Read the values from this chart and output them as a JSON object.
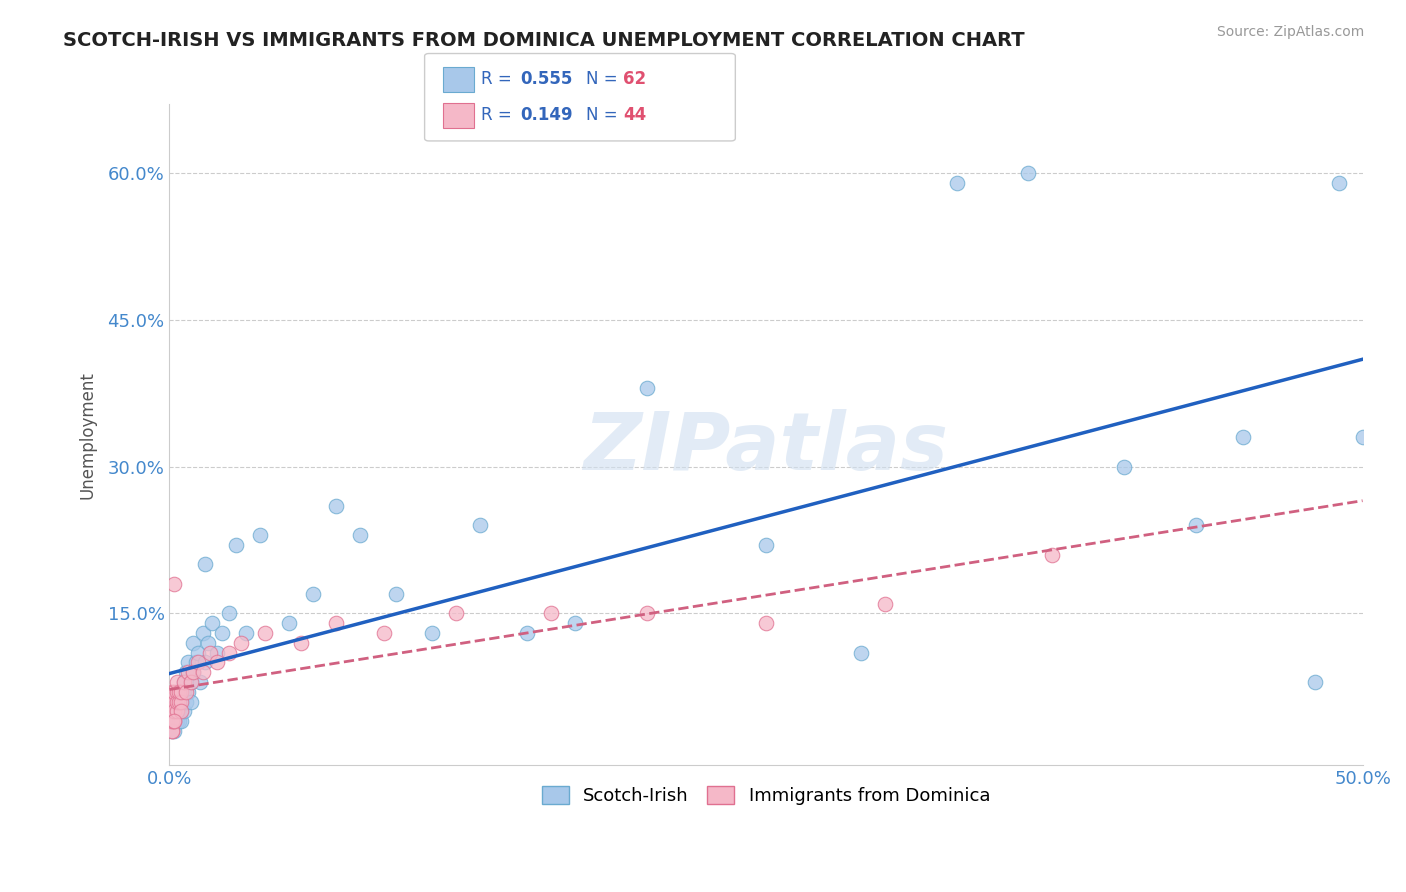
{
  "title": "SCOTCH-IRISH VS IMMIGRANTS FROM DOMINICA UNEMPLOYMENT CORRELATION CHART",
  "source": "Source: ZipAtlas.com",
  "ylabel": "Unemployment",
  "xlim": [
    0.0,
    0.5
  ],
  "ylim": [
    -0.005,
    0.67
  ],
  "xticks": [
    0.0,
    0.1,
    0.2,
    0.3,
    0.4,
    0.5
  ],
  "xtick_labels": [
    "0.0%",
    "",
    "",
    "",
    "",
    "50.0%"
  ],
  "ytick_positions": [
    0.15,
    0.3,
    0.45,
    0.6
  ],
  "ytick_labels": [
    "15.0%",
    "30.0%",
    "45.0%",
    "60.0%"
  ],
  "series1_name": "Scotch-Irish",
  "series1_color": "#a8c8ea",
  "series1_edge": "#6aaad0",
  "series2_name": "Immigrants from Dominica",
  "series2_color": "#f5b8c8",
  "series2_edge": "#e07090",
  "line1_color": "#2060c0",
  "line2_color": "#d06080",
  "watermark_text": "ZIPatlas",
  "background_color": "#ffffff",
  "scotch_irish_x": [
    0.001,
    0.001,
    0.001,
    0.002,
    0.002,
    0.002,
    0.002,
    0.003,
    0.003,
    0.003,
    0.003,
    0.004,
    0.004,
    0.004,
    0.005,
    0.005,
    0.005,
    0.006,
    0.006,
    0.006,
    0.007,
    0.007,
    0.008,
    0.008,
    0.009,
    0.009,
    0.01,
    0.01,
    0.011,
    0.012,
    0.013,
    0.014,
    0.015,
    0.016,
    0.018,
    0.02,
    0.022,
    0.025,
    0.028,
    0.032,
    0.038,
    0.05,
    0.06,
    0.07,
    0.08,
    0.095,
    0.11,
    0.13,
    0.15,
    0.17,
    0.2,
    0.25,
    0.29,
    0.33,
    0.36,
    0.4,
    0.43,
    0.45,
    0.48,
    0.5,
    0.49,
    0.015
  ],
  "scotch_irish_y": [
    0.04,
    0.05,
    0.03,
    0.05,
    0.04,
    0.06,
    0.03,
    0.05,
    0.04,
    0.07,
    0.06,
    0.05,
    0.04,
    0.07,
    0.05,
    0.06,
    0.04,
    0.07,
    0.05,
    0.08,
    0.06,
    0.09,
    0.07,
    0.1,
    0.08,
    0.06,
    0.09,
    0.12,
    0.1,
    0.11,
    0.08,
    0.13,
    0.1,
    0.12,
    0.14,
    0.11,
    0.13,
    0.15,
    0.22,
    0.13,
    0.23,
    0.14,
    0.17,
    0.26,
    0.23,
    0.17,
    0.13,
    0.24,
    0.13,
    0.14,
    0.38,
    0.22,
    0.11,
    0.59,
    0.6,
    0.3,
    0.24,
    0.33,
    0.08,
    0.33,
    0.59,
    0.2
  ],
  "dominica_x": [
    0.001,
    0.001,
    0.001,
    0.001,
    0.001,
    0.001,
    0.001,
    0.001,
    0.002,
    0.002,
    0.002,
    0.002,
    0.002,
    0.003,
    0.003,
    0.003,
    0.003,
    0.004,
    0.004,
    0.005,
    0.005,
    0.006,
    0.007,
    0.008,
    0.009,
    0.01,
    0.012,
    0.014,
    0.017,
    0.02,
    0.025,
    0.03,
    0.04,
    0.055,
    0.07,
    0.09,
    0.12,
    0.16,
    0.2,
    0.25,
    0.3,
    0.37,
    0.005,
    0.002
  ],
  "dominica_y": [
    0.03,
    0.04,
    0.05,
    0.03,
    0.06,
    0.04,
    0.07,
    0.05,
    0.04,
    0.06,
    0.05,
    0.07,
    0.18,
    0.05,
    0.07,
    0.06,
    0.08,
    0.06,
    0.07,
    0.06,
    0.07,
    0.08,
    0.07,
    0.09,
    0.08,
    0.09,
    0.1,
    0.09,
    0.11,
    0.1,
    0.11,
    0.12,
    0.13,
    0.12,
    0.14,
    0.13,
    0.15,
    0.15,
    0.15,
    0.14,
    0.16,
    0.21,
    0.05,
    0.04
  ]
}
